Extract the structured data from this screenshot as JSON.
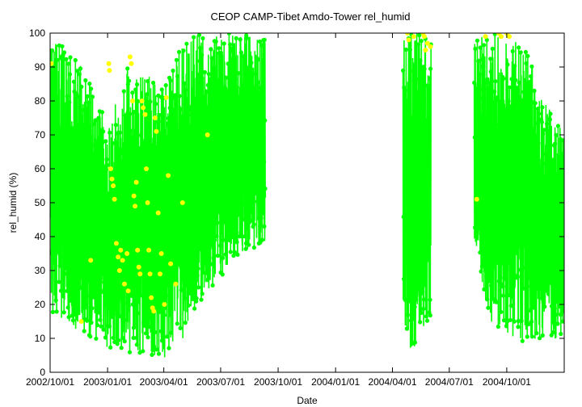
{
  "chart_data": {
    "type": "scatter",
    "title": "CEOP CAMP-Tibet Amdo-Tower  rel_humid",
    "xlabel": "Date",
    "ylabel": "rel_humid (%)",
    "ylim": [
      0,
      100
    ],
    "xlim": [
      "2002-10-01",
      "2005-01-01"
    ],
    "y_ticks": [
      0,
      10,
      20,
      30,
      40,
      50,
      60,
      70,
      80,
      90,
      100
    ],
    "x_ticks": [
      {
        "date": "2002-10-01",
        "label": "2002/10/01"
      },
      {
        "date": "2003-01-01",
        "label": "2003/01/01"
      },
      {
        "date": "2003-04-01",
        "label": "2003/04/01"
      },
      {
        "date": "2003-07-01",
        "label": "2003/07/01"
      },
      {
        "date": "2003-10-01",
        "label": "2003/10/01"
      },
      {
        "date": "2004-01-01",
        "label": "2004/01/01"
      },
      {
        "date": "2004-04-01",
        "label": "2004/04/01"
      },
      {
        "date": "2004-07-01",
        "label": "2004/07/01"
      },
      {
        "date": "2004-10-01",
        "label": "2004/10/01"
      }
    ],
    "grid": false,
    "legend": "none",
    "series": [
      {
        "color": "#00ff00",
        "segments": [
          {
            "start": "2002-10-01",
            "end": "2003-09-10",
            "envelope": [
              {
                "date": "2002-10-01",
                "min": 18,
                "max": 100
              },
              {
                "date": "2002-11-01",
                "min": 14,
                "max": 95
              },
              {
                "date": "2002-12-01",
                "min": 10,
                "max": 88
              },
              {
                "date": "2003-01-01",
                "min": 7,
                "max": 72
              },
              {
                "date": "2003-02-01",
                "min": 6,
                "max": 90
              },
              {
                "date": "2003-03-01",
                "min": 5,
                "max": 88
              },
              {
                "date": "2003-04-01",
                "min": 3,
                "max": 85
              },
              {
                "date": "2003-05-01",
                "min": 10,
                "max": 100
              },
              {
                "date": "2003-06-01",
                "min": 22,
                "max": 100
              },
              {
                "date": "2003-07-01",
                "min": 28,
                "max": 100
              },
              {
                "date": "2003-08-01",
                "min": 35,
                "max": 100
              },
              {
                "date": "2003-09-10",
                "min": 38,
                "max": 98
              }
            ]
          },
          {
            "start": "2004-04-18",
            "end": "2004-06-01",
            "envelope": [
              {
                "date": "2004-04-18",
                "min": 8,
                "max": 100
              },
              {
                "date": "2004-05-01",
                "min": 6,
                "max": 100
              },
              {
                "date": "2004-05-15",
                "min": 10,
                "max": 100
              },
              {
                "date": "2004-06-01",
                "min": 12,
                "max": 98
              }
            ]
          },
          {
            "start": "2004-08-10",
            "end": "2004-12-31",
            "envelope": [
              {
                "date": "2004-08-10",
                "min": 38,
                "max": 98
              },
              {
                "date": "2004-09-01",
                "min": 15,
                "max": 100
              },
              {
                "date": "2004-10-01",
                "min": 10,
                "max": 100
              },
              {
                "date": "2004-11-01",
                "min": 9,
                "max": 95
              },
              {
                "date": "2004-12-01",
                "min": 10,
                "max": 80
              },
              {
                "date": "2004-12-31",
                "min": 8,
                "max": 70
              }
            ]
          }
        ]
      },
      {
        "color": "#ffff00",
        "points": [
          [
            "2002-10-03",
            91
          ],
          [
            "2002-11-20",
            15
          ],
          [
            "2002-12-05",
            33
          ],
          [
            "2003-01-03",
            91
          ],
          [
            "2003-01-04",
            89
          ],
          [
            "2003-01-06",
            60
          ],
          [
            "2003-01-08",
            57
          ],
          [
            "2003-01-10",
            55
          ],
          [
            "2003-01-12",
            51
          ],
          [
            "2003-01-15",
            38
          ],
          [
            "2003-01-18",
            34
          ],
          [
            "2003-01-20",
            30
          ],
          [
            "2003-01-22",
            36
          ],
          [
            "2003-01-25",
            33
          ],
          [
            "2003-01-28",
            26
          ],
          [
            "2003-02-01",
            35
          ],
          [
            "2003-02-03",
            24
          ],
          [
            "2003-02-06",
            93
          ],
          [
            "2003-02-08",
            91
          ],
          [
            "2003-02-10",
            80
          ],
          [
            "2003-02-12",
            52
          ],
          [
            "2003-02-14",
            49
          ],
          [
            "2003-02-16",
            56
          ],
          [
            "2003-02-18",
            36
          ],
          [
            "2003-02-20",
            31
          ],
          [
            "2003-02-22",
            29
          ],
          [
            "2003-02-25",
            80
          ],
          [
            "2003-02-27",
            78
          ],
          [
            "2003-03-02",
            76
          ],
          [
            "2003-03-04",
            60
          ],
          [
            "2003-03-06",
            50
          ],
          [
            "2003-03-08",
            36
          ],
          [
            "2003-03-10",
            29
          ],
          [
            "2003-03-12",
            22
          ],
          [
            "2003-03-14",
            19
          ],
          [
            "2003-03-16",
            18
          ],
          [
            "2003-03-18",
            75
          ],
          [
            "2003-03-20",
            71
          ],
          [
            "2003-03-23",
            47
          ],
          [
            "2003-03-26",
            29
          ],
          [
            "2003-03-28",
            35
          ],
          [
            "2003-04-02",
            20
          ],
          [
            "2003-04-05",
            81
          ],
          [
            "2003-04-08",
            58
          ],
          [
            "2003-04-12",
            32
          ],
          [
            "2003-04-20",
            26
          ],
          [
            "2003-05-01",
            50
          ],
          [
            "2003-06-10",
            70
          ],
          [
            "2004-04-25",
            100
          ],
          [
            "2004-04-27",
            98
          ],
          [
            "2004-05-05",
            99
          ],
          [
            "2004-05-20",
            100
          ],
          [
            "2004-05-22",
            99
          ],
          [
            "2004-05-24",
            95
          ],
          [
            "2004-05-27",
            97
          ],
          [
            "2004-06-01",
            96
          ],
          [
            "2004-08-14",
            51
          ],
          [
            "2004-08-28",
            99
          ],
          [
            "2004-09-18",
            100
          ],
          [
            "2004-09-22",
            99
          ],
          [
            "2004-10-01",
            100
          ],
          [
            "2004-10-05",
            99
          ]
        ]
      }
    ]
  }
}
